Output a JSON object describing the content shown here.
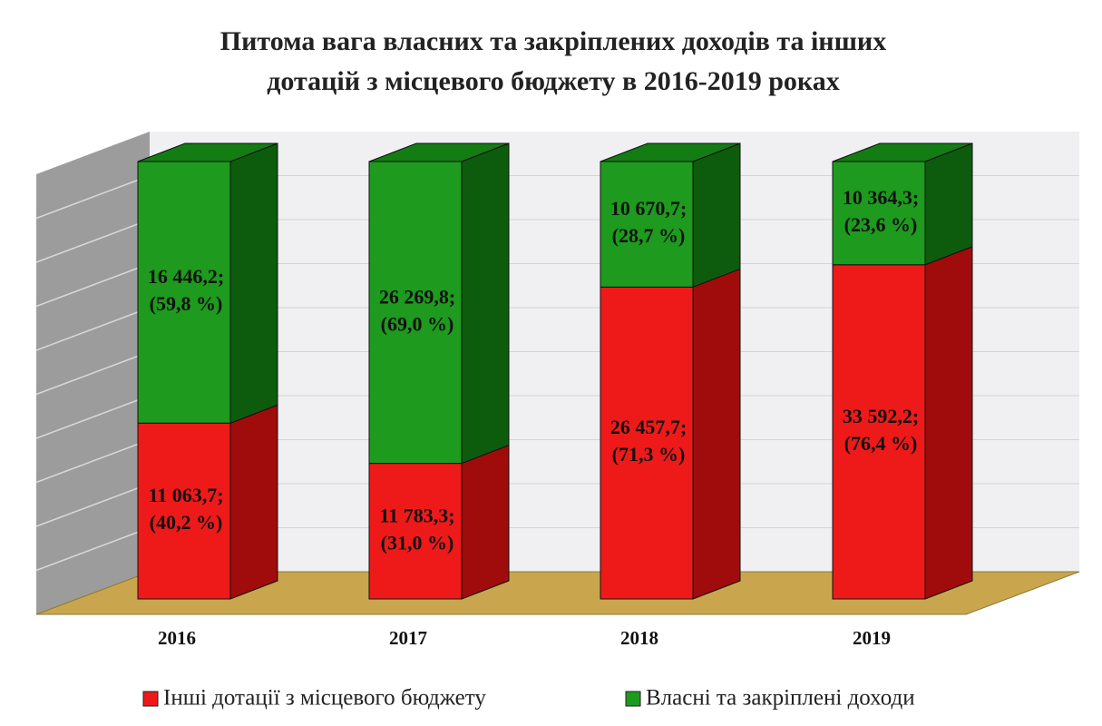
{
  "chart_data": {
    "type": "bar3d_stacked",
    "title": [
      "Питома вага власних та закріплених доходів та інших",
      "дотацій з місцевого бюджету в 2016-2019 роках"
    ],
    "categories": [
      "2016",
      "2017",
      "2018",
      "2019"
    ],
    "ylim": [
      0,
      100
    ],
    "series": [
      {
        "name": "Інші дотації з місцевого бюджету",
        "color": "#ee1a1a",
        "side": "#a00c0c",
        "top": "#c41414",
        "values": [
          40.2,
          31.0,
          71.3,
          76.4
        ],
        "value_labels": [
          [
            "11 063,7;",
            "(40,2 %)"
          ],
          [
            "11 783,3;",
            "(31,0 %)"
          ],
          [
            "26 457,7;",
            "(71,3 %)"
          ],
          [
            "33 592,2;",
            "(76,4 %)"
          ]
        ]
      },
      {
        "name": "Власні та закріплені доходи",
        "color": "#1e9a1e",
        "side": "#0d5c0d",
        "top": "#137c13",
        "values": [
          59.8,
          69.0,
          28.7,
          23.6
        ],
        "value_labels": [
          [
            "16 446,2;",
            "(59,8 %)"
          ],
          [
            "26 269,8;",
            "(69,0 %)"
          ],
          [
            "10 670,7;",
            "(28,7 %)"
          ],
          [
            "10 364,3;",
            "(23,6 %)"
          ]
        ]
      }
    ]
  }
}
